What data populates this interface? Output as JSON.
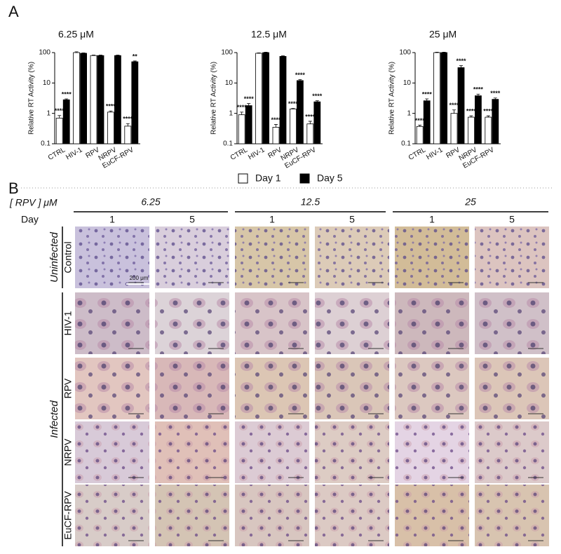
{
  "panel_labels": [
    "A",
    "B"
  ],
  "chart_data": [
    {
      "type": "bar",
      "title": "6.25 μM",
      "y_label": "Relative RT Activity (%)",
      "categories": [
        "CTRL",
        "HIV-1",
        "RPV",
        "NRPV",
        "EuCF-RPV"
      ],
      "series": [
        {
          "name": "Day 1",
          "color": "#ffffff",
          "values": [
            0.7,
            100,
            80,
            1.1,
            0.38
          ],
          "errors": [
            0.15,
            6,
            3,
            0.1,
            0.08
          ],
          "annotations": [
            "****",
            null,
            null,
            "****",
            "****"
          ]
        },
        {
          "name": "Day 5",
          "color": "#000000",
          "values": [
            2.8,
            95,
            80,
            80,
            50
          ],
          "errors": [
            0.2,
            3,
            3,
            3,
            3
          ],
          "annotations": [
            "****",
            null,
            null,
            null,
            "**"
          ]
        }
      ],
      "ylim": [
        0.1,
        100
      ],
      "yticks": [
        0.1,
        1,
        10,
        100
      ],
      "log_scale": true
    },
    {
      "type": "bar",
      "title": "12.5 μM",
      "y_label": "Relative RT Activity (%)",
      "categories": [
        "CTRL",
        "HIV-1",
        "RPV",
        "NRPV",
        "EuCF-RPV"
      ],
      "series": [
        {
          "name": "Day 1",
          "color": "#ffffff",
          "values": [
            0.9,
            95,
            0.35,
            1.4,
            0.45
          ],
          "errors": [
            0.2,
            3,
            0.08,
            0.05,
            0.1
          ],
          "annotations": [
            "****",
            null,
            "****",
            "****",
            "****"
          ]
        },
        {
          "name": "Day 5",
          "color": "#000000",
          "values": [
            1.8,
            100,
            75,
            12,
            2.4
          ],
          "errors": [
            0.3,
            3,
            3,
            1,
            0.2
          ],
          "annotations": [
            "****",
            null,
            null,
            "****",
            "****"
          ]
        }
      ],
      "ylim": [
        0.1,
        100
      ],
      "yticks": [
        0.1,
        1,
        10,
        100
      ],
      "log_scale": true
    },
    {
      "type": "bar",
      "title": "25 μM",
      "y_label": "Relative RT Activity (%)",
      "categories": [
        "CTRL",
        "HIV-1",
        "RPV",
        "NRPV",
        "EuCF-RPV"
      ],
      "series": [
        {
          "name": "Day 1",
          "color": "#ffffff",
          "values": [
            0.37,
            100,
            1.0,
            0.75,
            0.75
          ],
          "errors": [
            0.04,
            3,
            0.3,
            0.08,
            0.08
          ],
          "annotations": [
            "****",
            null,
            "****",
            "****",
            "****"
          ]
        },
        {
          "name": "Day 5",
          "color": "#000000",
          "values": [
            2.6,
            100,
            32,
            3.8,
            2.9
          ],
          "errors": [
            0.4,
            3,
            5,
            0.5,
            0.3
          ],
          "annotations": [
            "****",
            null,
            "****",
            "****",
            "****"
          ]
        }
      ],
      "ylim": [
        0.1,
        100
      ],
      "yticks": [
        0.1,
        1,
        10,
        100
      ],
      "log_scale": true
    }
  ],
  "micrograph_grid": {
    "concentration_label": "[ RPV ] μM",
    "concentrations": [
      "6.25",
      "12.5",
      "25"
    ],
    "day_label": "Day",
    "days": [
      "1",
      "5"
    ],
    "groups": [
      {
        "label": "Uninfected",
        "rows": [
          "Control"
        ]
      },
      {
        "label": "Infected",
        "rows": [
          "HIV-1",
          "RPV",
          "NRPV",
          "EuCF-RPV"
        ]
      }
    ],
    "scale_bar": "200 μm"
  }
}
